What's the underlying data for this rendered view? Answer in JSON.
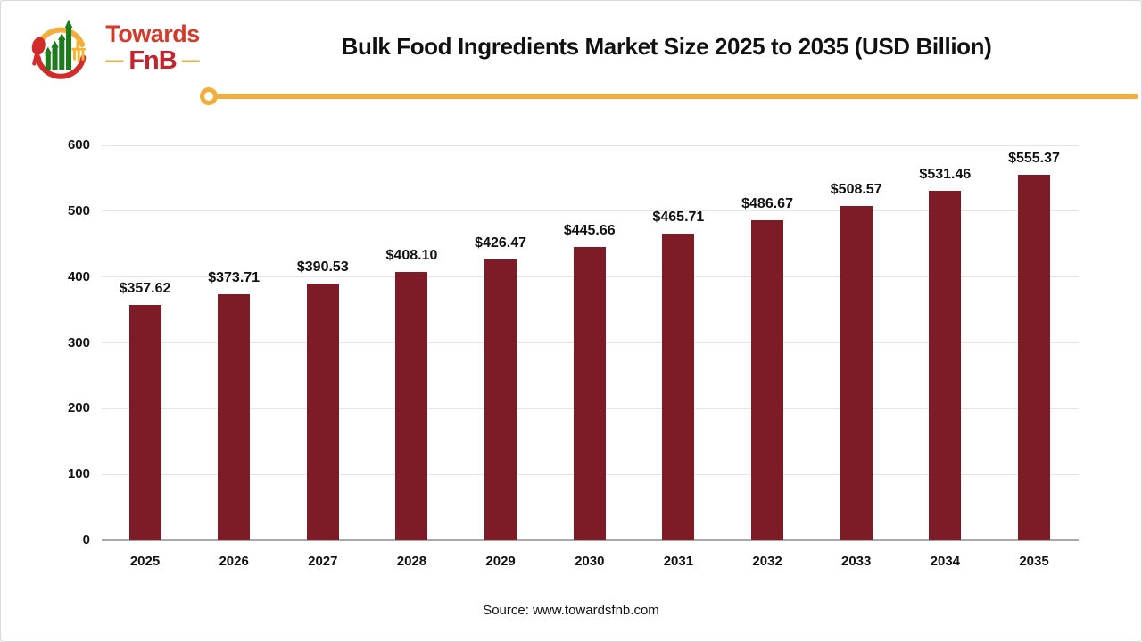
{
  "page": {
    "background": "#ffffff",
    "border_color": "#d9d9d9"
  },
  "logo": {
    "brand_top": "Towards",
    "brand_bottom": "FnB",
    "dash_left": "—",
    "dash_right": "—",
    "brand_top_color": "#d43b2c",
    "brand_bottom_color": "#c5242c",
    "accent_yellow": "#f1ae3d",
    "icon_green": "#1e7a1f",
    "icon_red": "#d22b2b"
  },
  "header": {
    "title": "Bulk Food Ingredients Market Size 2025 to 2035 (USD Billion)"
  },
  "chart_data": {
    "type": "bar",
    "title": "Bulk Food Ingredients Market Size 2025 to 2035 (USD Billion)",
    "categories": [
      "2025",
      "2026",
      "2027",
      "2028",
      "2029",
      "2030",
      "2031",
      "2032",
      "2033",
      "2034",
      "2035"
    ],
    "values": [
      357.62,
      373.71,
      390.53,
      408.1,
      426.47,
      445.66,
      465.71,
      486.67,
      508.57,
      531.46,
      555.37
    ],
    "value_labels": [
      "$357.62",
      "$373.71",
      "$390.53",
      "$408.10",
      "$426.47",
      "$445.66",
      "$465.71",
      "$486.67",
      "$508.57",
      "$531.46",
      "$555.37"
    ],
    "unit": "USD Billion",
    "xlabel": "",
    "ylabel": "",
    "ylim": [
      0,
      600
    ],
    "yticks": [
      0,
      100,
      200,
      300,
      400,
      500,
      600
    ],
    "grid": true,
    "legend": "none",
    "bar_color": "#7d1c27",
    "gridline_color": "#e5e5e5",
    "axis_color": "#a9a9a9"
  },
  "footer": {
    "source": "Source: www.towardsfnb.com"
  }
}
